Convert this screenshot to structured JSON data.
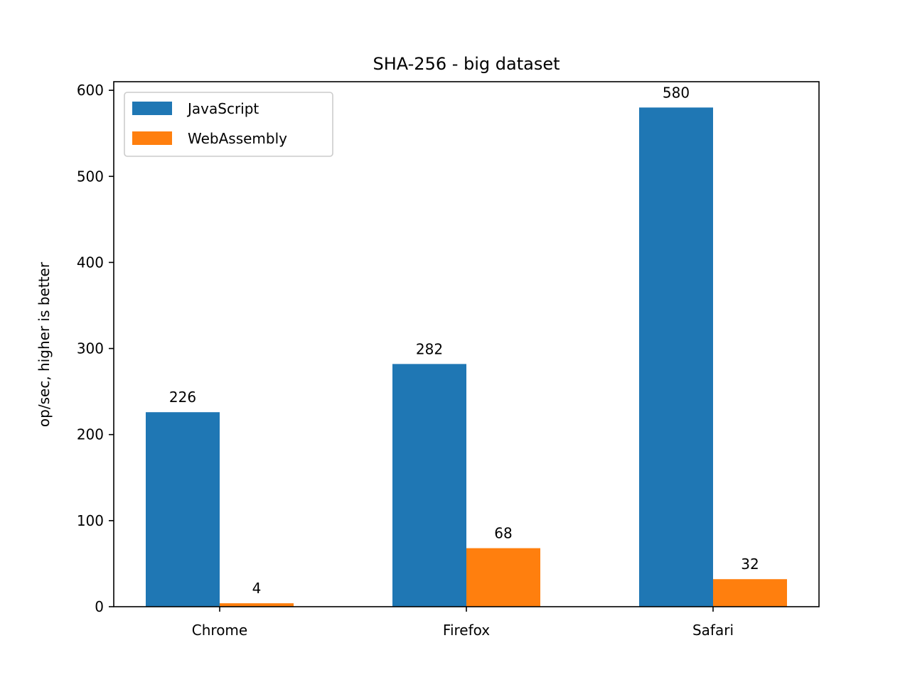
{
  "chart_data": {
    "type": "bar",
    "title": "SHA-256 - big dataset",
    "xlabel": "",
    "ylabel": "op/sec, higher is better",
    "categories": [
      "Chrome",
      "Firefox",
      "Safari"
    ],
    "series": [
      {
        "name": "JavaScript",
        "color": "#1f77b4",
        "values": [
          226,
          282,
          580
        ]
      },
      {
        "name": "WebAssembly",
        "color": "#ff7f0e",
        "values": [
          4,
          68,
          32
        ]
      }
    ],
    "ylim": [
      0,
      610
    ],
    "yticks": [
      0,
      100,
      200,
      300,
      400,
      500,
      600
    ],
    "grid": false,
    "legend_position": "top-left",
    "data_labels": true
  }
}
